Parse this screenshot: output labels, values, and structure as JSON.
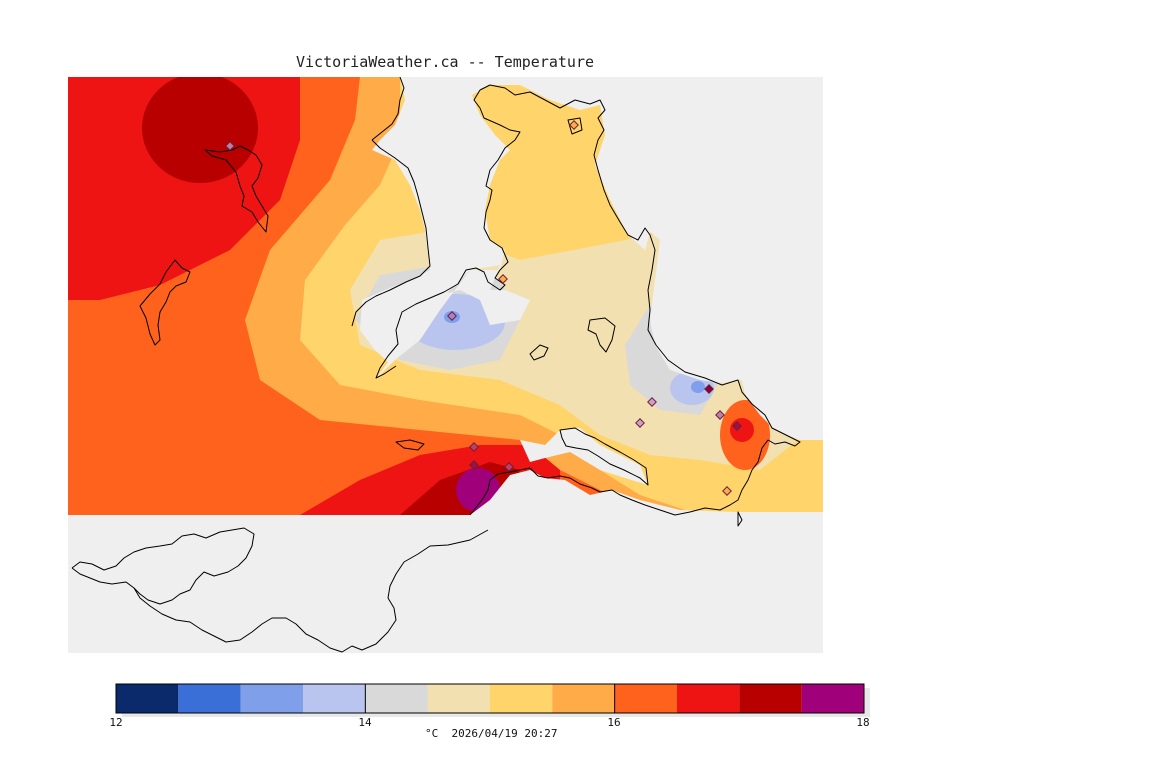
{
  "title": "VictoriaWeather.ca -- Temperature",
  "legend": {
    "unit": "°C",
    "timestamp": "2026/04/19 20:27",
    "tick_labels": [
      "12",
      "14",
      "16",
      "18"
    ],
    "min": 12,
    "max": 18,
    "colors": [
      "#0a2a6b",
      "#3a6fd8",
      "#7f9fea",
      "#b9c5ee",
      "#d9d9d9",
      "#f2e0b0",
      "#ffd56b",
      "#ffab48",
      "#ff621c",
      "#ee1414",
      "#b80000",
      "#a0007a"
    ]
  },
  "map": {
    "water_color": "#efefef",
    "land_outline_color": "#000000",
    "station_color": "#8b2a5a"
  }
}
